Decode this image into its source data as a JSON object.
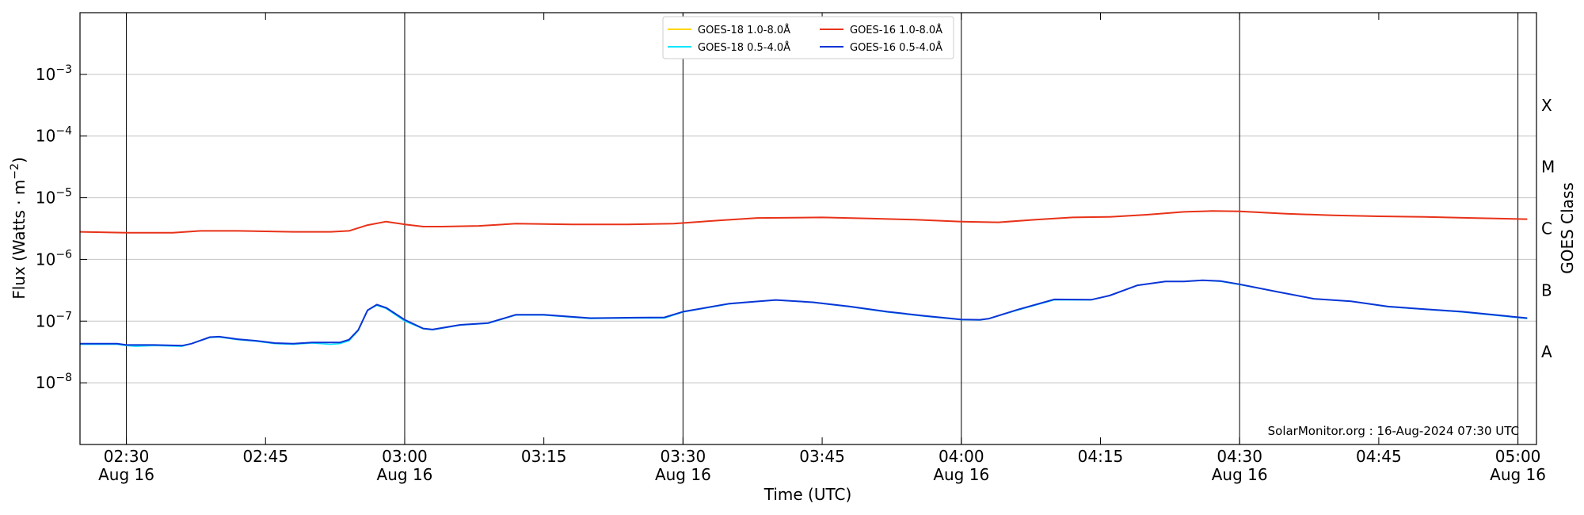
{
  "chart_data": {
    "type": "line",
    "x_axis": {
      "label": "Time (UTC)",
      "range": [
        "02:25",
        "05:02"
      ],
      "ticks": [
        {
          "time": "02:30",
          "label": "02:30",
          "sublabel": "Aug 16"
        },
        {
          "time": "02:45",
          "label": "02:45",
          "sublabel": ""
        },
        {
          "time": "03:00",
          "label": "03:00",
          "sublabel": "Aug 16"
        },
        {
          "time": "03:15",
          "label": "03:15",
          "sublabel": ""
        },
        {
          "time": "03:30",
          "label": "03:30",
          "sublabel": "Aug 16"
        },
        {
          "time": "03:45",
          "label": "03:45",
          "sublabel": ""
        },
        {
          "time": "04:00",
          "label": "04:00",
          "sublabel": "Aug 16"
        },
        {
          "time": "04:15",
          "label": "04:15",
          "sublabel": ""
        },
        {
          "time": "04:30",
          "label": "04:30",
          "sublabel": "Aug 16"
        },
        {
          "time": "04:45",
          "label": "04:45",
          "sublabel": ""
        },
        {
          "time": "05:00",
          "label": "05:00",
          "sublabel": "Aug 16"
        }
      ],
      "vertical_lines": [
        "02:30",
        "03:00",
        "03:30",
        "04:00",
        "04:30",
        "05:00"
      ]
    },
    "y_axis": {
      "label_prefix": "Flux (Watts · m",
      "label_sup": "−2",
      "label_suffix": ")",
      "scale": "log",
      "range": [
        1e-09,
        0.01
      ],
      "ticks": [
        {
          "value": 1e-08,
          "base": "10",
          "exp": "−8"
        },
        {
          "value": 1e-07,
          "base": "10",
          "exp": "−7"
        },
        {
          "value": 1e-06,
          "base": "10",
          "exp": "−6"
        },
        {
          "value": 1e-05,
          "base": "10",
          "exp": "−5"
        },
        {
          "value": 0.0001,
          "base": "10",
          "exp": "−4"
        },
        {
          "value": 0.001,
          "base": "10",
          "exp": "−3"
        }
      ],
      "grid": "horizontal"
    },
    "right_axis": {
      "label": "GOES Class",
      "classes": [
        {
          "label": "A",
          "value": 3.16e-08
        },
        {
          "label": "B",
          "value": 3.16e-07
        },
        {
          "label": "C",
          "value": 3.16e-06
        },
        {
          "label": "M",
          "value": 3.16e-05
        },
        {
          "label": "X",
          "value": 0.000316
        }
      ]
    },
    "legend": {
      "placement": "top-center",
      "entries": [
        {
          "name": "GOES-18 1.0-8.0Å",
          "color": "#ffd700"
        },
        {
          "name": "GOES-18 0.5-4.0Å",
          "color": "#00e5ff"
        },
        {
          "name": "GOES-16 1.0-8.0Å",
          "color": "#e8321a"
        },
        {
          "name": "GOES-16 0.5-4.0Å",
          "color": "#0a35d6"
        }
      ]
    },
    "series": [
      {
        "name": "GOES-18 1.0-8.0Å",
        "color": "#ffd700",
        "width": 1.5,
        "x": [
          "02:25",
          "02:30",
          "02:35",
          "02:38",
          "02:42",
          "02:48",
          "02:52",
          "02:54",
          "02:56",
          "02:58",
          "03:00",
          "03:02",
          "03:04",
          "03:08",
          "03:12",
          "03:18",
          "03:24",
          "03:29",
          "03:34",
          "03:38",
          "03:45",
          "03:50",
          "03:55",
          "04:00",
          "04:04",
          "04:08",
          "04:12",
          "04:16",
          "04:20",
          "04:24",
          "04:27",
          "04:30",
          "04:35",
          "04:40",
          "04:45",
          "04:50",
          "04:55",
          "05:01"
        ],
        "y": [
          2.8e-06,
          2.7e-06,
          2.7e-06,
          2.9e-06,
          2.9e-06,
          2.8e-06,
          2.8e-06,
          2.9e-06,
          3.6e-06,
          4.1e-06,
          3.7e-06,
          3.4e-06,
          3.4e-06,
          3.5e-06,
          3.8e-06,
          3.7e-06,
          3.7e-06,
          3.8e-06,
          4.3e-06,
          4.7e-06,
          4.8e-06,
          4.6e-06,
          4.4e-06,
          4.1e-06,
          4e-06,
          4.4e-06,
          4.8e-06,
          4.9e-06,
          5.3e-06,
          5.9e-06,
          6.1e-06,
          6e-06,
          5.5e-06,
          5.2e-06,
          5e-06,
          4.9e-06,
          4.7e-06,
          4.5e-06
        ]
      },
      {
        "name": "GOES-16 1.0-8.0Å",
        "color": "#e8321a",
        "width": 2,
        "x": [
          "02:25",
          "02:30",
          "02:35",
          "02:38",
          "02:42",
          "02:48",
          "02:52",
          "02:54",
          "02:56",
          "02:58",
          "03:00",
          "03:02",
          "03:04",
          "03:08",
          "03:12",
          "03:18",
          "03:24",
          "03:29",
          "03:34",
          "03:38",
          "03:45",
          "03:50",
          "03:55",
          "04:00",
          "04:04",
          "04:08",
          "04:12",
          "04:16",
          "04:20",
          "04:24",
          "04:27",
          "04:30",
          "04:35",
          "04:40",
          "04:45",
          "04:50",
          "04:55",
          "05:01"
        ],
        "y": [
          2.8e-06,
          2.7e-06,
          2.7e-06,
          2.9e-06,
          2.9e-06,
          2.8e-06,
          2.8e-06,
          2.9e-06,
          3.6e-06,
          4.1e-06,
          3.7e-06,
          3.4e-06,
          3.4e-06,
          3.5e-06,
          3.8e-06,
          3.7e-06,
          3.7e-06,
          3.8e-06,
          4.3e-06,
          4.7e-06,
          4.8e-06,
          4.6e-06,
          4.4e-06,
          4.1e-06,
          4e-06,
          4.4e-06,
          4.8e-06,
          4.9e-06,
          5.3e-06,
          5.9e-06,
          6.1e-06,
          6e-06,
          5.5e-06,
          5.2e-06,
          5e-06,
          4.9e-06,
          4.7e-06,
          4.5e-06
        ]
      },
      {
        "name": "GOES-18 0.5-4.0Å",
        "color": "#00e5ff",
        "width": 1.5,
        "x": [
          "02:25",
          "02:29",
          "02:30",
          "02:31",
          "02:33",
          "02:36",
          "02:37",
          "02:39",
          "02:40",
          "02:42",
          "02:44",
          "02:46",
          "02:48",
          "02:50",
          "02:52",
          "02:53",
          "02:54",
          "02:55",
          "02:56",
          "02:57",
          "02:58",
          "03:00",
          "03:02",
          "03:03",
          "03:06",
          "03:09",
          "03:12",
          "03:15",
          "03:20",
          "03:25",
          "03:28",
          "03:30",
          "03:35",
          "03:40",
          "03:44",
          "03:48",
          "03:52",
          "03:56",
          "04:00",
          "04:02",
          "04:03",
          "04:06",
          "04:10",
          "04:14",
          "04:16",
          "04:19",
          "04:22",
          "04:24",
          "04:26",
          "04:28",
          "04:30",
          "04:34",
          "04:38",
          "04:42",
          "04:46",
          "04:50",
          "04:54",
          "05:01"
        ],
        "y": [
          4.2e-08,
          4.2e-08,
          4e-08,
          3.9e-08,
          4e-08,
          3.9e-08,
          4.3e-08,
          5.4e-08,
          5.5e-08,
          5e-08,
          4.7e-08,
          4.3e-08,
          4.2e-08,
          4.4e-08,
          4.2e-08,
          4.3e-08,
          4.8e-08,
          7e-08,
          1.5e-07,
          1.8e-07,
          1.6e-07,
          1e-07,
          7.5e-08,
          7.2e-08,
          8.6e-08,
          9.2e-08,
          1.25e-07,
          1.25e-07,
          1.1e-07,
          1.12e-07,
          1.12e-07,
          1.4e-07,
          1.9e-07,
          2.2e-07,
          2e-07,
          1.7e-07,
          1.4e-07,
          1.2e-07,
          1.05e-07,
          1.04e-07,
          1.1e-07,
          1.5e-07,
          2.2e-07,
          2.2e-07,
          2.6e-07,
          3.8e-07,
          4.4e-07,
          4.4e-07,
          4.6e-07,
          4.4e-07,
          3.9e-07,
          3e-07,
          2.3e-07,
          2.1e-07,
          1.7e-07,
          1.55e-07,
          1.4e-07,
          1.1e-07
        ]
      },
      {
        "name": "GOES-16 0.5-4.0Å",
        "color": "#0a35d6",
        "width": 2,
        "x": [
          "02:25",
          "02:29",
          "02:30",
          "02:31",
          "02:33",
          "02:36",
          "02:37",
          "02:39",
          "02:40",
          "02:42",
          "02:44",
          "02:46",
          "02:48",
          "02:50",
          "02:52",
          "02:53",
          "02:54",
          "02:55",
          "02:56",
          "02:57",
          "02:58",
          "03:00",
          "03:02",
          "03:03",
          "03:06",
          "03:09",
          "03:12",
          "03:15",
          "03:20",
          "03:25",
          "03:28",
          "03:30",
          "03:35",
          "03:40",
          "03:44",
          "03:48",
          "03:52",
          "03:56",
          "04:00",
          "04:02",
          "04:03",
          "04:06",
          "04:10",
          "04:14",
          "04:16",
          "04:19",
          "04:22",
          "04:24",
          "04:26",
          "04:28",
          "04:30",
          "04:34",
          "04:38",
          "04:42",
          "04:46",
          "04:50",
          "04:54",
          "05:01"
        ],
        "y": [
          4.3e-08,
          4.3e-08,
          4.1e-08,
          4.1e-08,
          4.1e-08,
          4e-08,
          4.3e-08,
          5.5e-08,
          5.6e-08,
          5.1e-08,
          4.8e-08,
          4.4e-08,
          4.3e-08,
          4.5e-08,
          4.5e-08,
          4.5e-08,
          5e-08,
          7.2e-08,
          1.5e-07,
          1.85e-07,
          1.65e-07,
          1.05e-07,
          7.6e-08,
          7.3e-08,
          8.7e-08,
          9.3e-08,
          1.27e-07,
          1.27e-07,
          1.12e-07,
          1.14e-07,
          1.15e-07,
          1.42e-07,
          1.92e-07,
          2.2e-07,
          2.02e-07,
          1.72e-07,
          1.42e-07,
          1.22e-07,
          1.06e-07,
          1.05e-07,
          1.1e-07,
          1.52e-07,
          2.25e-07,
          2.22e-07,
          2.6e-07,
          3.8e-07,
          4.4e-07,
          4.4e-07,
          4.6e-07,
          4.45e-07,
          3.95e-07,
          3e-07,
          2.3e-07,
          2.1e-07,
          1.72e-07,
          1.56e-07,
          1.42e-07,
          1.12e-07
        ]
      }
    ],
    "annotation": "SolarMonitor.org : 16-Aug-2024 07:30 UTC"
  }
}
